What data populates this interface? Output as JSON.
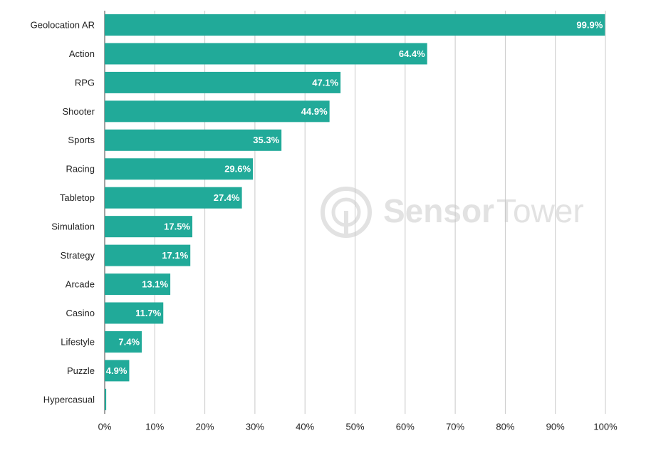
{
  "chart_data": {
    "type": "bar",
    "orientation": "horizontal",
    "categories": [
      "Geolocation AR",
      "Action",
      "RPG",
      "Shooter",
      "Sports",
      "Racing",
      "Tabletop",
      "Simulation",
      "Strategy",
      "Arcade",
      "Casino",
      "Lifestyle",
      "Puzzle",
      "Hypercasual"
    ],
    "values": [
      99.9,
      64.4,
      47.1,
      44.9,
      35.3,
      29.6,
      27.4,
      17.5,
      17.1,
      13.1,
      11.7,
      7.4,
      4.9,
      0.3
    ],
    "value_labels": [
      "99.9%",
      "64.4%",
      "47.1%",
      "44.9%",
      "35.3%",
      "29.6%",
      "27.4%",
      "17.5%",
      "17.1%",
      "13.1%",
      "11.7%",
      "7.4%",
      "4.9%",
      null
    ],
    "color": "#21aa99",
    "xlim": [
      0,
      100
    ],
    "xticks": [
      {
        "value": 0,
        "label": "0%"
      },
      {
        "value": 10,
        "label": "10%"
      },
      {
        "value": 20,
        "label": "20%"
      },
      {
        "value": 30,
        "label": "30%"
      },
      {
        "value": 40,
        "label": "40%"
      },
      {
        "value": 50,
        "label": "50%"
      },
      {
        "value": 60,
        "label": "60%"
      },
      {
        "value": 70,
        "label": "70%"
      },
      {
        "value": 80,
        "label": "80%"
      },
      {
        "value": 90,
        "label": "90%"
      },
      {
        "value": 100,
        "label": "100%"
      }
    ],
    "grid": true,
    "watermark": [
      "Sensor",
      "Tower"
    ]
  }
}
